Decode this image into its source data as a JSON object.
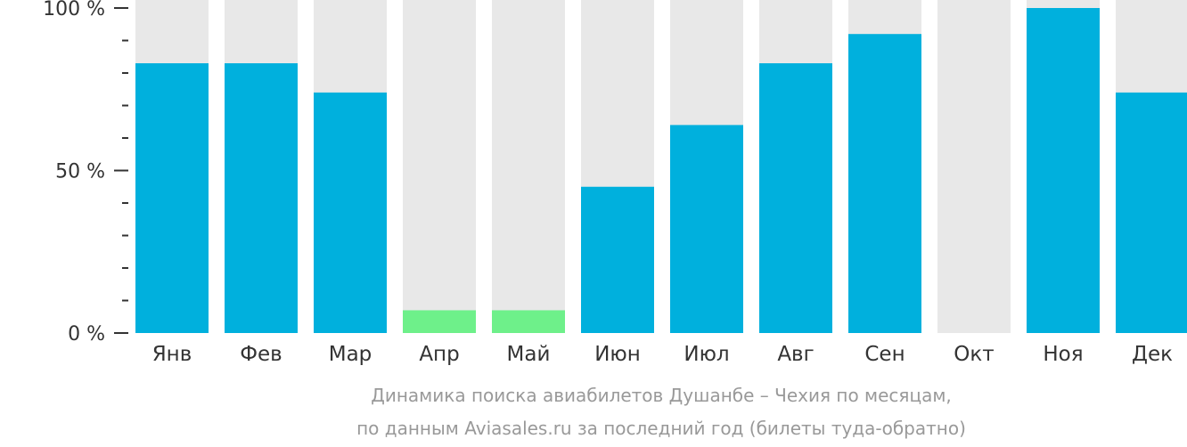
{
  "chart_data": {
    "type": "bar",
    "categories": [
      "Янв",
      "Фев",
      "Мар",
      "Апр",
      "Май",
      "Июн",
      "Июл",
      "Авг",
      "Сен",
      "Окт",
      "Ноя",
      "Дек"
    ],
    "values": [
      83,
      83,
      74,
      7,
      7,
      45,
      64,
      83,
      92,
      0,
      100,
      74
    ],
    "ylim": [
      0,
      100
    ],
    "yticks": [
      {
        "value": 0,
        "label": "0 %"
      },
      {
        "value": 50,
        "label": "50 %"
      },
      {
        "value": 100,
        "label": "100 %"
      }
    ],
    "minor_ticks": [
      10,
      20,
      30,
      40,
      60,
      70,
      80,
      90
    ],
    "caption_lines": [
      "Динамика поиска авиабилетов Душанбе – Чехия по месяцам,",
      "по данным Aviasales.ru за последний год (билеты туда-обратно)"
    ],
    "colors": {
      "bar": "#00b0dd",
      "bar_low": "#6ef08a",
      "background_bar": "#e8e8e8",
      "axis": "#333333",
      "caption": "#999999"
    },
    "low_threshold": 10
  }
}
